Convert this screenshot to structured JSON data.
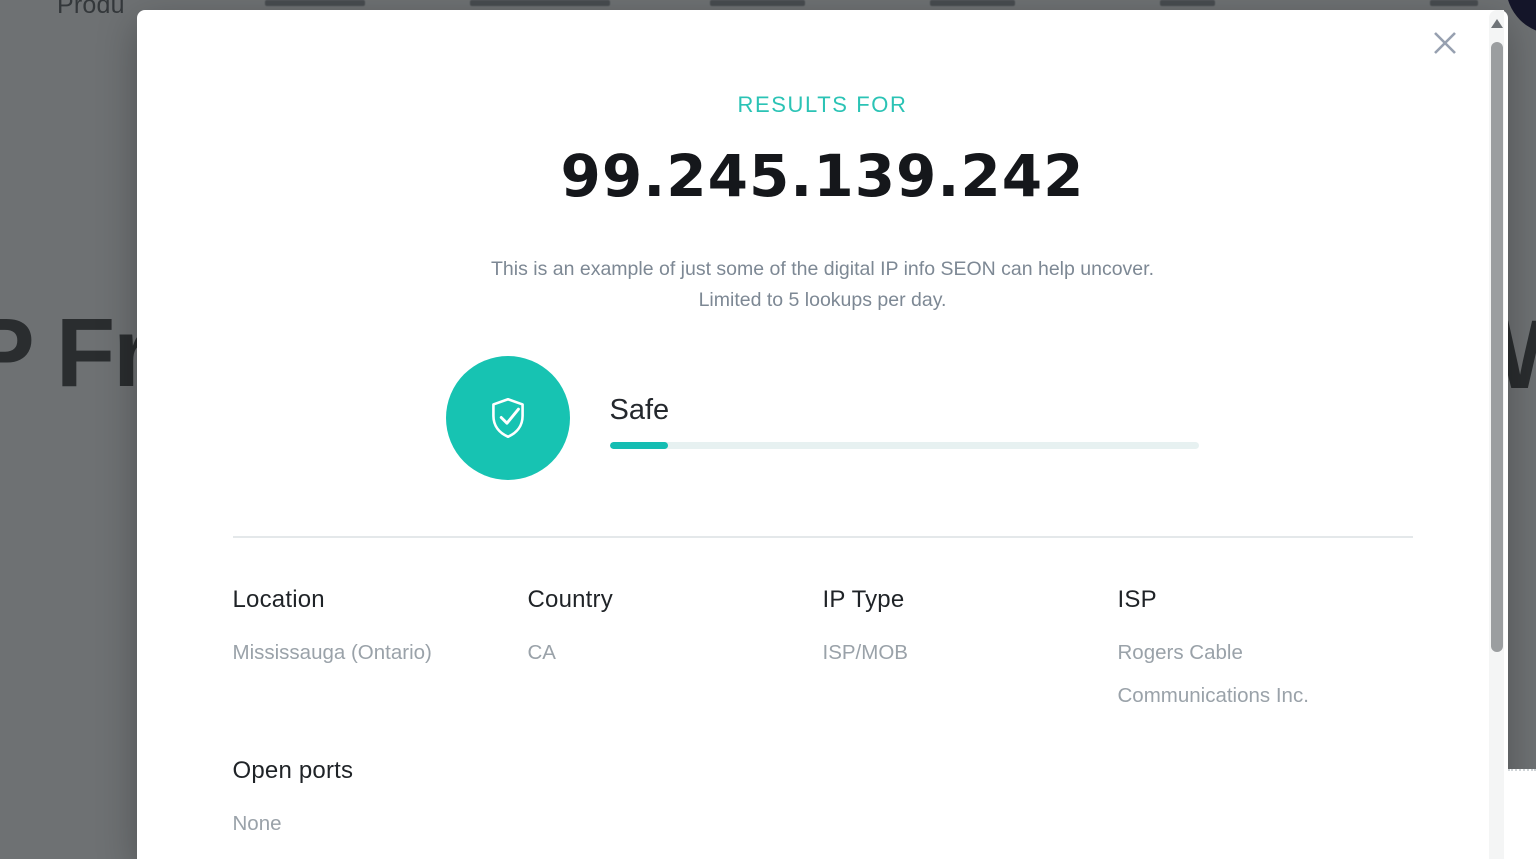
{
  "colors": {
    "accent_teal": "#17c3b2",
    "progress_track": "#e7f1f1",
    "overlay_gray": "#6e7173"
  },
  "background_page": {
    "nav_item_visible": "Produ",
    "heading_left_fragment": "P Fra",
    "heading_right_fragment": "Wo"
  },
  "icons": {
    "close": "✕",
    "shield_check": "shield-with-checkmark",
    "scroll_up": "▲"
  },
  "modal": {
    "eyebrow": "RESULTS FOR",
    "ip_address": "99.245.139.242",
    "description": {
      "line1": "This is an example of just some of the digital IP info SEON can help uncover.",
      "line2": "Limited to 5 lookups per day."
    },
    "risk": {
      "label": "Safe",
      "progress_percent": 10
    },
    "fields": [
      {
        "label": "Location",
        "value": "Mississauga (Ontario)"
      },
      {
        "label": "Country",
        "value": "CA"
      },
      {
        "label": "IP Type",
        "value": "ISP/MOB"
      },
      {
        "label": "ISP",
        "value": "Rogers Cable Communications Inc."
      }
    ],
    "fields_row2": [
      {
        "label": "Open ports",
        "value": "None"
      }
    ]
  }
}
